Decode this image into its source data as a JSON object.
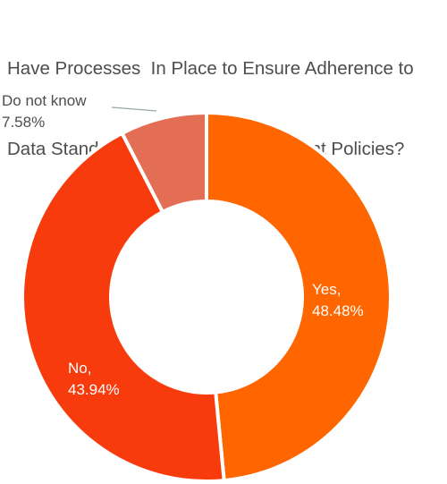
{
  "title_lines": [
    "Have Processes  In Place to Ensure Adherence to",
    "Data Standards and Data Management Policies?"
  ],
  "chart_data": {
    "type": "donut",
    "title": "Have Processes  In Place to Ensure Adherence to Data Standards and Data Management Policies?",
    "slices": [
      {
        "label": "Yes",
        "value": 48.48,
        "value_text": "48.48%",
        "color": "#ff6600"
      },
      {
        "label": "No",
        "value": 43.94,
        "value_text": "43.94%",
        "color": "#f83b0c"
      },
      {
        "label": "Do not know",
        "value": 7.58,
        "value_text": "7.58%",
        "color": "#e46e54"
      }
    ],
    "data_labels": [
      {
        "name": "Yes,",
        "value": "48.48%",
        "placement": "inside"
      },
      {
        "name": "No,",
        "value": "43.94%",
        "placement": "inside"
      },
      {
        "name": "Do not know",
        "value": "7.58%",
        "placement": "outside",
        "leader_line": true
      }
    ],
    "start_angle": "12 o'clock",
    "direction": "clockwise",
    "legend": "none"
  }
}
